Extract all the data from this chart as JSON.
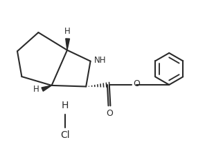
{
  "bg_color": "#ffffff",
  "line_color": "#2a2a2a",
  "line_width": 1.5,
  "text_color": "#2a2a2a",
  "fig_width": 3.22,
  "fig_height": 2.19,
  "dpi": 100,
  "xlim": [
    0,
    10
  ],
  "ylim": [
    0,
    6.8
  ]
}
